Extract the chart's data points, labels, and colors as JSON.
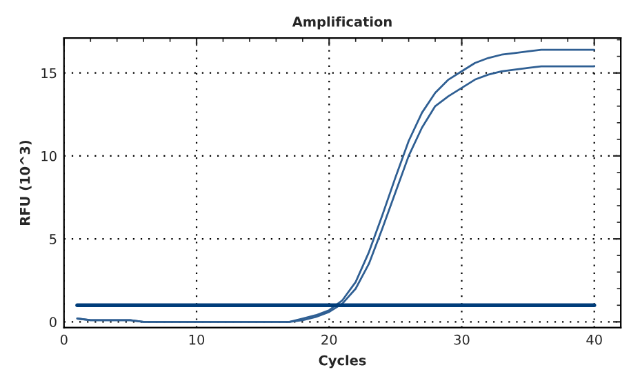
{
  "chart_data": {
    "type": "line",
    "title": "Amplification",
    "xlabel": "Cycles",
    "ylabel": "RFU (10^3)",
    "x": [
      1,
      2,
      3,
      4,
      5,
      6,
      7,
      8,
      9,
      10,
      11,
      12,
      13,
      14,
      15,
      16,
      17,
      18,
      19,
      20,
      21,
      22,
      23,
      24,
      25,
      26,
      27,
      28,
      29,
      30,
      31,
      32,
      33,
      34,
      35,
      36,
      37,
      38,
      39,
      40
    ],
    "series": [
      {
        "color": "#2f5f93",
        "values": [
          0.2,
          0.1,
          0.1,
          0.1,
          0.1,
          0,
          0,
          0,
          0,
          0,
          0,
          0,
          0,
          0,
          0,
          0,
          0,
          0.2,
          0.4,
          0.7,
          1.3,
          2.4,
          4.2,
          6.4,
          8.7,
          10.9,
          12.6,
          13.8,
          14.6,
          15.1,
          15.6,
          15.9,
          16.1,
          16.2,
          16.3,
          16.4,
          16.4,
          16.4,
          16.4,
          16.4
        ]
      },
      {
        "color": "#2f5f93",
        "values": [
          0.2,
          0.1,
          0.1,
          0.1,
          0.1,
          0,
          0,
          0,
          0,
          0,
          0,
          0,
          0,
          0,
          0,
          0,
          0,
          0.1,
          0.3,
          0.6,
          1.1,
          2.0,
          3.5,
          5.6,
          7.8,
          10.0,
          11.7,
          13.0,
          13.6,
          14.1,
          14.6,
          14.9,
          15.1,
          15.2,
          15.3,
          15.4,
          15.4,
          15.4,
          15.4,
          15.4
        ]
      },
      {
        "color": "#003d7a",
        "x": [
          1,
          40
        ],
        "values": [
          1,
          1
        ]
      }
    ],
    "xlim": [
      0,
      42
    ],
    "ylim": [
      -0.35,
      17.1
    ],
    "xticks": [
      0,
      10,
      20,
      30,
      40
    ],
    "yticks": [
      0,
      5,
      10,
      15
    ],
    "grid": true,
    "line_style": "solid",
    "marker": "none"
  }
}
